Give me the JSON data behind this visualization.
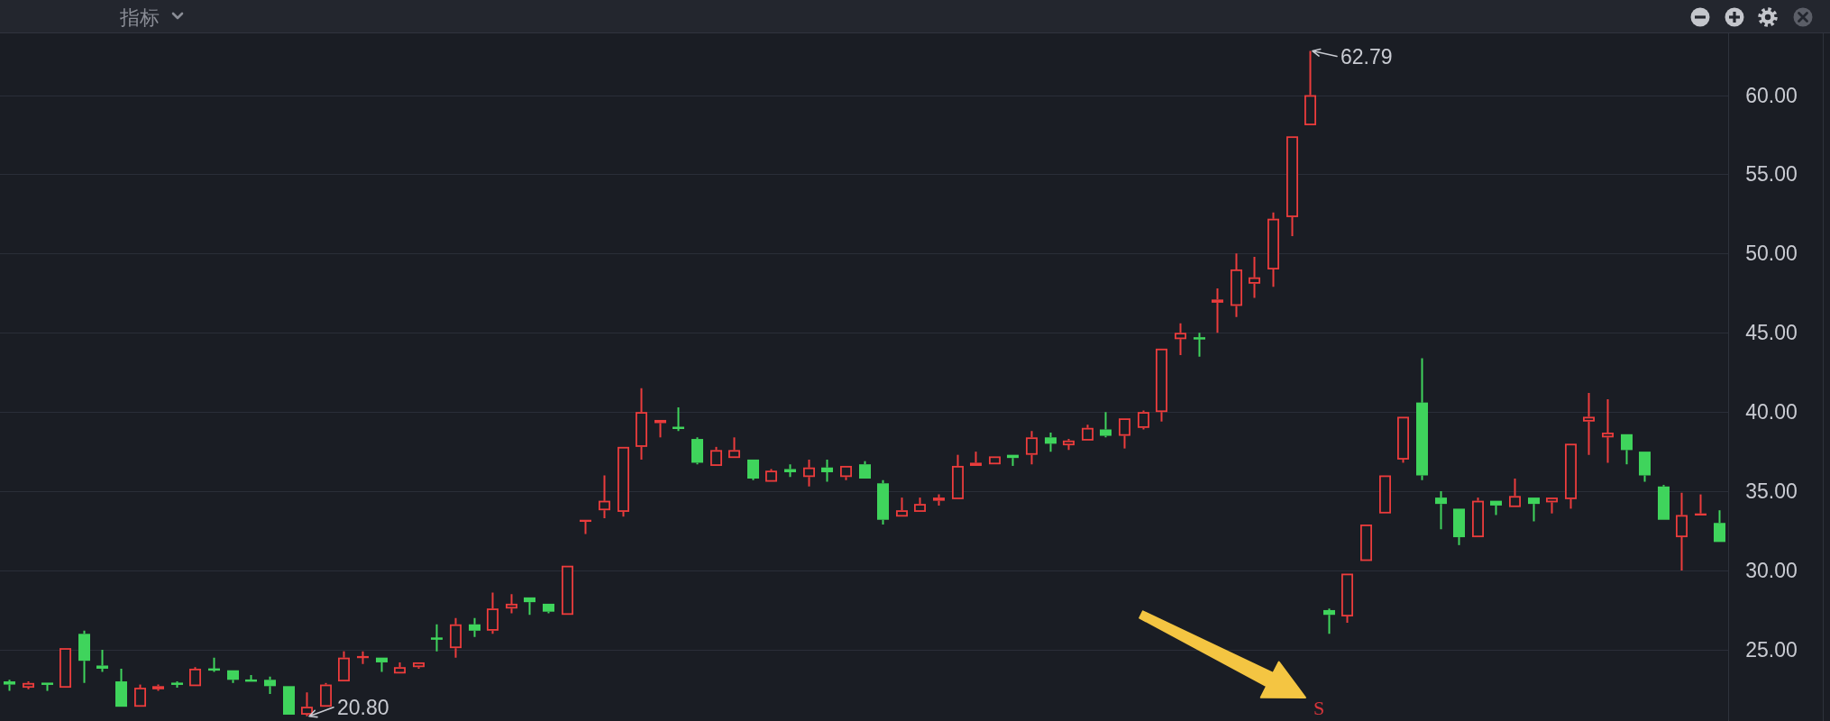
{
  "chart_data": {
    "type": "candlestick",
    "categories": [
      null,
      null,
      null,
      null,
      null,
      null,
      null,
      null,
      null,
      null,
      null,
      null,
      null,
      null,
      null,
      null,
      null,
      null,
      null,
      null,
      null,
      null,
      null,
      null,
      null,
      null,
      null,
      null,
      null,
      null,
      null,
      null,
      null,
      null,
      null,
      null,
      null,
      null,
      null,
      null,
      null,
      null,
      null,
      null,
      null,
      null,
      null,
      null,
      null,
      null,
      null,
      null,
      null,
      null,
      null,
      null,
      null,
      null,
      null,
      null,
      null,
      null,
      null,
      null,
      null,
      null,
      null,
      null,
      null,
      null,
      null,
      null,
      null,
      null,
      null,
      null,
      null,
      null,
      null,
      null,
      null,
      null,
      null,
      null,
      null,
      null,
      null,
      null,
      null,
      null,
      null,
      null,
      null
    ],
    "ohlc": [
      [
        23.0,
        23.1,
        22.4,
        22.8
      ],
      [
        22.6,
        23.0,
        22.5,
        22.9
      ],
      [
        22.9,
        22.9,
        22.4,
        22.8
      ],
      [
        22.6,
        25.1,
        22.6,
        25.1
      ],
      [
        26.0,
        26.2,
        22.9,
        24.3
      ],
      [
        24.0,
        25.0,
        23.6,
        23.8
      ],
      [
        23.0,
        23.8,
        21.4,
        21.4
      ],
      [
        21.4,
        22.8,
        21.4,
        22.6
      ],
      [
        22.5,
        22.8,
        22.4,
        22.7
      ],
      [
        22.9,
        23.0,
        22.6,
        22.8
      ],
      [
        22.7,
        23.9,
        22.7,
        23.8
      ],
      [
        23.8,
        24.5,
        23.6,
        23.7
      ],
      [
        23.7,
        23.7,
        22.9,
        23.1
      ],
      [
        23.1,
        23.4,
        23.0,
        23.0
      ],
      [
        23.1,
        23.3,
        22.2,
        22.7
      ],
      [
        22.7,
        22.7,
        20.9,
        20.9
      ],
      [
        20.9,
        22.3,
        20.8,
        21.4
      ],
      [
        21.4,
        22.9,
        21.4,
        22.8
      ],
      [
        23.0,
        24.9,
        23.0,
        24.5
      ],
      [
        24.5,
        24.9,
        24.1,
        24.6
      ],
      [
        24.5,
        24.5,
        23.6,
        24.2
      ],
      [
        23.5,
        24.2,
        23.5,
        23.9
      ],
      [
        23.9,
        24.2,
        23.8,
        24.2
      ],
      [
        25.7,
        26.6,
        24.9,
        25.7
      ],
      [
        25.1,
        27.0,
        24.5,
        26.6
      ],
      [
        26.6,
        27.0,
        25.8,
        26.2
      ],
      [
        26.2,
        28.6,
        26.0,
        27.6
      ],
      [
        27.6,
        28.5,
        27.3,
        27.9
      ],
      [
        28.3,
        28.3,
        27.2,
        28.0
      ],
      [
        27.9,
        27.9,
        27.3,
        27.4
      ],
      [
        27.2,
        30.3,
        27.2,
        30.3
      ],
      [
        33.1,
        33.2,
        32.3,
        33.2
      ],
      [
        33.8,
        36.0,
        33.3,
        34.4
      ],
      [
        33.7,
        37.8,
        33.4,
        37.8
      ],
      [
        37.8,
        41.5,
        37.0,
        40.0
      ],
      [
        39.3,
        39.5,
        38.4,
        39.5
      ],
      [
        39.0,
        40.3,
        38.8,
        39.0
      ],
      [
        38.3,
        38.4,
        36.7,
        36.8
      ],
      [
        36.6,
        37.8,
        36.6,
        37.6
      ],
      [
        37.1,
        38.4,
        37.1,
        37.6
      ],
      [
        37.0,
        37.0,
        35.7,
        35.8
      ],
      [
        35.6,
        36.4,
        35.6,
        36.3
      ],
      [
        36.4,
        36.7,
        35.9,
        36.2
      ],
      [
        35.9,
        37.0,
        35.3,
        36.5
      ],
      [
        36.5,
        37.0,
        35.6,
        36.2
      ],
      [
        35.9,
        36.6,
        35.7,
        36.6
      ],
      [
        36.7,
        36.9,
        35.8,
        35.8
      ],
      [
        35.5,
        35.7,
        32.9,
        33.2
      ],
      [
        33.4,
        34.6,
        33.4,
        33.8
      ],
      [
        33.7,
        34.6,
        33.7,
        34.2
      ],
      [
        34.4,
        34.8,
        34.1,
        34.6
      ],
      [
        34.5,
        37.3,
        34.5,
        36.6
      ],
      [
        36.6,
        37.5,
        36.6,
        36.8
      ],
      [
        36.7,
        37.2,
        36.7,
        37.2
      ],
      [
        37.3,
        37.3,
        36.6,
        37.1
      ],
      [
        37.3,
        38.8,
        36.7,
        38.4
      ],
      [
        38.4,
        38.7,
        37.5,
        38.0
      ],
      [
        37.9,
        38.3,
        37.6,
        38.2
      ],
      [
        38.2,
        39.2,
        38.2,
        39.0
      ],
      [
        38.9,
        40.0,
        38.4,
        38.5
      ],
      [
        38.5,
        39.6,
        37.7,
        39.6
      ],
      [
        39.0,
        40.1,
        38.9,
        40.0
      ],
      [
        40.0,
        44.0,
        39.4,
        44.0
      ],
      [
        44.6,
        45.6,
        43.6,
        45.0
      ],
      [
        44.7,
        45.0,
        43.5,
        44.6
      ],
      [
        46.9,
        47.8,
        45.0,
        47.1
      ],
      [
        46.7,
        50.0,
        46.0,
        49.0
      ],
      [
        48.1,
        49.8,
        47.2,
        48.5
      ],
      [
        49.0,
        52.6,
        47.9,
        52.2
      ],
      [
        52.3,
        57.4,
        51.1,
        57.4
      ],
      [
        58.1,
        62.79,
        58.1,
        60.0
      ],
      [
        27.5,
        27.6,
        26.0,
        27.2
      ],
      [
        27.1,
        29.8,
        26.7,
        29.8
      ],
      [
        30.6,
        32.9,
        30.6,
        32.9
      ],
      [
        33.6,
        36.0,
        33.6,
        36.0
      ],
      [
        37.0,
        39.7,
        36.8,
        39.7
      ],
      [
        40.6,
        43.4,
        35.7,
        36.0
      ],
      [
        34.6,
        35.0,
        32.6,
        34.2
      ],
      [
        33.9,
        33.9,
        31.6,
        32.1
      ],
      [
        32.1,
        34.6,
        32.1,
        34.4
      ],
      [
        34.4,
        34.4,
        33.5,
        34.1
      ],
      [
        34.0,
        35.8,
        34.0,
        34.7
      ],
      [
        34.6,
        34.6,
        33.1,
        34.2
      ],
      [
        34.3,
        34.6,
        33.6,
        34.6
      ],
      [
        34.5,
        38.0,
        33.9,
        38.0
      ],
      [
        39.4,
        41.2,
        37.3,
        39.7
      ],
      [
        38.4,
        40.8,
        36.8,
        38.7
      ],
      [
        38.6,
        38.6,
        36.7,
        37.6
      ],
      [
        37.5,
        37.5,
        35.6,
        36.0
      ],
      [
        35.3,
        35.4,
        33.2,
        33.2
      ],
      [
        32.1,
        34.9,
        30.0,
        33.5
      ],
      [
        33.5,
        34.8,
        33.5,
        33.6
      ],
      [
        33.0,
        33.8,
        31.8,
        31.8
      ]
    ],
    "colors": [
      "#3fd45c",
      "#eb3c3c",
      "#3fd45c",
      "#eb3c3c",
      "#3fd45c",
      "#3fd45c",
      "#3fd45c",
      "#eb3c3c",
      "#eb3c3c",
      "#3fd45c",
      "#eb3c3c",
      "#3fd45c",
      "#3fd45c",
      "#3fd45c",
      "#3fd45c",
      "#3fd45c",
      "#eb3c3c",
      "#eb3c3c",
      "#eb3c3c",
      "#eb3c3c",
      "#3fd45c",
      "#eb3c3c",
      "#eb3c3c",
      "#3fd45c",
      "#eb3c3c",
      "#3fd45c",
      "#eb3c3c",
      "#eb3c3c",
      "#3fd45c",
      "#3fd45c",
      "#eb3c3c",
      "#eb3c3c",
      "#eb3c3c",
      "#eb3c3c",
      "#eb3c3c",
      "#eb3c3c",
      "#3fd45c",
      "#3fd45c",
      "#eb3c3c",
      "#eb3c3c",
      "#3fd45c",
      "#eb3c3c",
      "#3fd45c",
      "#eb3c3c",
      "#3fd45c",
      "#eb3c3c",
      "#3fd45c",
      "#3fd45c",
      "#eb3c3c",
      "#eb3c3c",
      "#eb3c3c",
      "#eb3c3c",
      "#eb3c3c",
      "#eb3c3c",
      "#3fd45c",
      "#eb3c3c",
      "#3fd45c",
      "#eb3c3c",
      "#eb3c3c",
      "#3fd45c",
      "#eb3c3c",
      "#eb3c3c",
      "#eb3c3c",
      "#eb3c3c",
      "#3fd45c",
      "#eb3c3c",
      "#eb3c3c",
      "#eb3c3c",
      "#eb3c3c",
      "#eb3c3c",
      "#eb3c3c",
      "#3fd45c",
      "#eb3c3c",
      "#eb3c3c",
      "#eb3c3c",
      "#eb3c3c",
      "#3fd45c",
      "#3fd45c",
      "#3fd45c",
      "#eb3c3c",
      "#3fd45c",
      "#eb3c3c",
      "#3fd45c",
      "#eb3c3c",
      "#eb3c3c",
      "#eb3c3c",
      "#eb3c3c",
      "#3fd45c",
      "#3fd45c",
      "#3fd45c",
      "#eb3c3c",
      "#eb3c3c",
      "#3fd45c"
    ],
    "ylim": [
      20.5,
      63.9
    ],
    "yticks": [
      {
        "value": 25,
        "label": "25.00"
      },
      {
        "value": 30,
        "label": "30.00"
      },
      {
        "value": 35,
        "label": "35.00"
      },
      {
        "value": 40,
        "label": "40.00"
      },
      {
        "value": 45,
        "label": "45.00"
      },
      {
        "value": 50,
        "label": "50.00"
      },
      {
        "value": 55,
        "label": "55.00"
      },
      {
        "value": 60,
        "label": "60.00"
      }
    ],
    "grid": "y",
    "tick_labels": "y",
    "annotations": [
      "指标",
      "62.79",
      "20.80",
      "S"
    ]
  }
}
